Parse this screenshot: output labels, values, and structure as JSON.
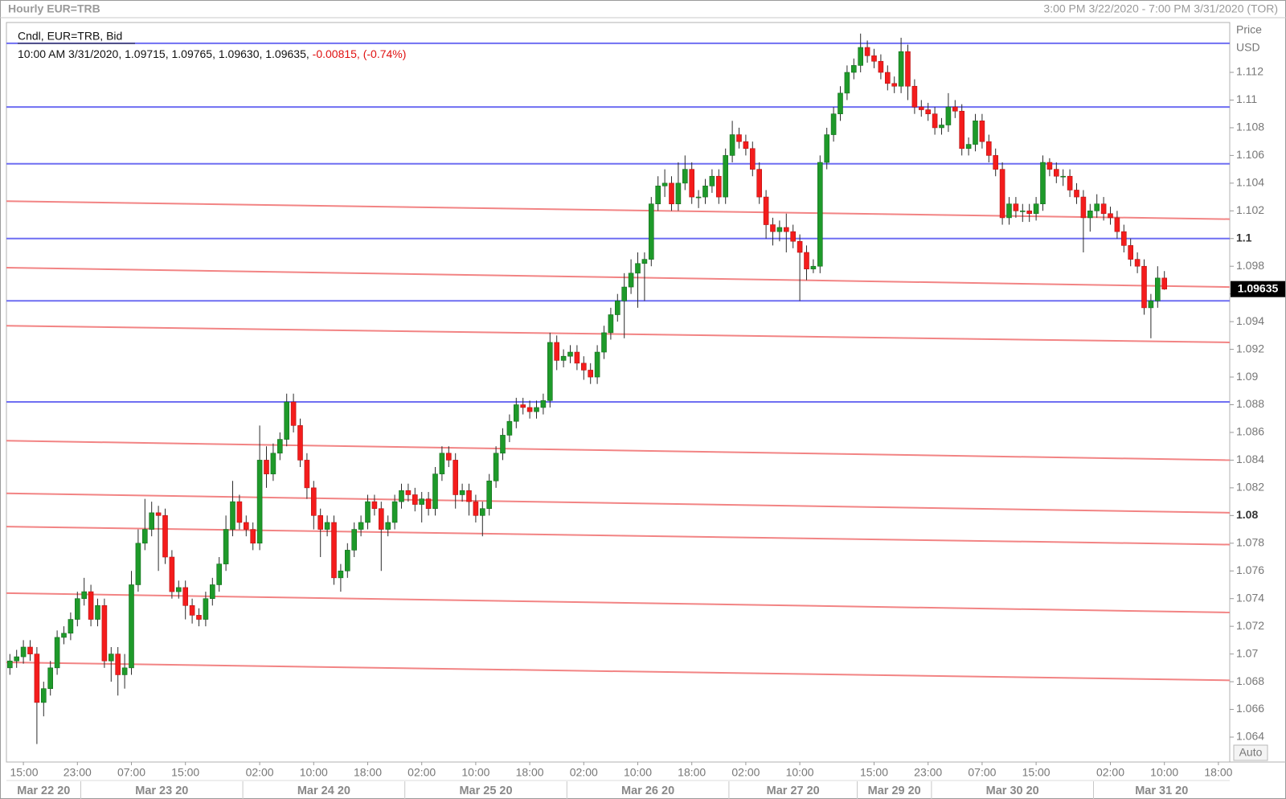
{
  "chart_data": {
    "type": "candlestick",
    "title": "Hourly EUR=TRB",
    "subtitle": "3:00 PM 3/22/2020 - 7:00 PM 3/31/2020 (TOR)",
    "legend_title": "Cndl, EUR=TRB, Bid",
    "legend_info": "10:00 AM 3/31/2020, 1.09715, 1.09765, 1.09630, 1.09635,",
    "legend_change": "-0.00815, (-0.74%)",
    "y_axis_label": "Price",
    "y_axis_unit": "USD",
    "scale_mode": "Auto",
    "up_color": "#1e9a2a",
    "down_color": "#f41c1c",
    "ylim": [
      1.0622,
      1.1156
    ],
    "yticks": [
      1.064,
      1.066,
      1.068,
      1.07,
      1.072,
      1.074,
      1.076,
      1.078,
      1.08,
      1.082,
      1.084,
      1.086,
      1.088,
      1.09,
      1.092,
      1.094,
      1.096,
      1.098,
      1.1,
      1.102,
      1.104,
      1.106,
      1.108,
      1.11,
      1.112
    ],
    "last_price": 1.09635,
    "horizontal_levels": {
      "color": "#6e6ef2",
      "values": [
        1.1141,
        1.1095,
        1.1054,
        1.1,
        1.0955,
        1.0882
      ]
    },
    "trend_lines": {
      "color": "#f28484",
      "start": [
        1.1027,
        1.0979,
        1.0937,
        1.0854,
        1.0816,
        1.0792,
        1.0744,
        1.0694
      ],
      "end": [
        1.1014,
        1.0965,
        1.0925,
        1.084,
        1.0802,
        1.0779,
        1.073,
        1.0681
      ]
    },
    "categories": [
      null,
      null,
      "15:00",
      null,
      null,
      null,
      null,
      null,
      null,
      null,
      "23:00",
      null,
      null,
      null,
      null,
      null,
      null,
      null,
      "07:00",
      null,
      null,
      null,
      null,
      null,
      null,
      null,
      "15:00",
      null,
      null,
      null,
      null,
      null,
      null,
      null,
      null,
      null,
      null,
      "02:00",
      null,
      null,
      null,
      null,
      null,
      null,
      null,
      "10:00",
      null,
      null,
      null,
      null,
      null,
      null,
      null,
      "18:00",
      null,
      null,
      null,
      null,
      null,
      null,
      null,
      "02:00",
      null,
      null,
      null,
      null,
      null,
      null,
      null,
      "10:00",
      null,
      null,
      null,
      null,
      null,
      null,
      null,
      "18:00",
      null,
      null,
      null,
      null,
      null,
      null,
      null,
      "02:00",
      null,
      null,
      null,
      null,
      null,
      null,
      null,
      "10:00",
      null,
      null,
      null,
      null,
      null,
      null,
      null,
      "18:00",
      null,
      null,
      null,
      null,
      null,
      null,
      null,
      "02:00",
      null,
      null,
      null,
      null,
      null,
      null,
      null,
      "10:00",
      null,
      null,
      null,
      null,
      null,
      null,
      null,
      null,
      null,
      null,
      "15:00",
      null,
      null,
      null,
      null,
      null,
      null,
      null,
      "23:00",
      null,
      null,
      null,
      null,
      null,
      null,
      null,
      "07:00",
      null,
      null,
      null,
      null,
      null,
      null,
      null,
      "15:00",
      null,
      null,
      null,
      null,
      null,
      null,
      null,
      null,
      null,
      null,
      "02:00",
      null,
      null,
      null,
      null,
      null,
      null,
      null,
      "10:00",
      null,
      null,
      null,
      null,
      null,
      null,
      null,
      "18:00",
      null
    ],
    "date_categories": [
      "Mar 22 20",
      null,
      null,
      null,
      null,
      null,
      null,
      null,
      null,
      null,
      null,
      "Mar 23 20",
      null,
      null,
      null,
      null,
      null,
      null,
      null,
      null,
      null,
      null,
      null,
      null,
      null,
      null,
      null,
      null,
      null,
      null,
      null,
      null,
      null,
      null,
      null,
      "Mar 24 20",
      null,
      null,
      null,
      null,
      null,
      null,
      null,
      null,
      null,
      null,
      null,
      null,
      null,
      null,
      null,
      null,
      null,
      null,
      null,
      null,
      null,
      null,
      null,
      "Mar 25 20",
      null,
      null,
      null,
      null,
      null,
      null,
      null,
      null,
      null,
      null,
      null,
      null,
      null,
      null,
      null,
      null,
      null,
      null,
      null,
      null,
      null,
      null,
      null,
      "Mar 26 20",
      null,
      null,
      null,
      null,
      null,
      null,
      null,
      null,
      null,
      null,
      null,
      null,
      null,
      null,
      null,
      null,
      null,
      null,
      null,
      null,
      null,
      null,
      null,
      "Mar 27 20",
      null,
      null,
      null,
      null,
      null,
      null,
      null,
      null,
      null,
      null,
      null,
      null,
      null,
      null,
      null,
      null,
      null,
      null,
      "Mar 29 20",
      null,
      null,
      null,
      null,
      null,
      null,
      null,
      null,
      null,
      null,
      "Mar 30 20",
      null,
      null,
      null,
      null,
      null,
      null,
      null,
      null,
      null,
      null,
      null,
      null,
      null,
      null,
      null,
      null,
      null,
      null,
      null,
      null,
      null,
      null,
      null,
      "Mar 31 20",
      null,
      null,
      null,
      null,
      null,
      null,
      null,
      null,
      null,
      null,
      null,
      null,
      null,
      null,
      null,
      null,
      null,
      null,
      null
    ],
    "open": [
      1.069,
      1.0695,
      1.0698,
      1.0705,
      1.07,
      1.0665,
      1.0675,
      1.069,
      1.0712,
      1.0715,
      1.0725,
      1.074,
      1.0745,
      1.0725,
      1.0735,
      1.0695,
      1.07,
      1.0685,
      1.069,
      1.075,
      1.078,
      1.079,
      1.0802,
      1.08,
      1.077,
      1.0745,
      1.0748,
      1.0735,
      1.0728,
      1.0725,
      1.074,
      1.075,
      1.0765,
      1.079,
      1.081,
      1.0795,
      1.079,
      1.078,
      1.084,
      1.083,
      1.0845,
      1.0855,
      1.0882,
      1.0865,
      1.084,
      1.082,
      1.08,
      1.079,
      1.0795,
      1.0755,
      1.076,
      1.0775,
      1.079,
      1.0795,
      1.081,
      1.0805,
      1.079,
      1.0795,
      1.081,
      1.0818,
      1.0815,
      1.0808,
      1.0812,
      1.0805,
      1.083,
      1.0845,
      1.084,
      1.0815,
      1.0818,
      1.081,
      1.08,
      1.0805,
      1.0825,
      1.0845,
      1.0858,
      1.0868,
      1.088,
      1.0878,
      1.0875,
      1.0878,
      1.0883,
      1.0925,
      1.0912,
      1.0915,
      1.0918,
      1.091,
      1.0905,
      1.09,
      1.0918,
      1.0932,
      1.0945,
      1.0955,
      1.0965,
      1.0975,
      1.0982,
      1.0985,
      1.1025,
      1.1038,
      1.104,
      1.1025,
      1.104,
      1.105,
      1.103,
      1.103,
      1.1038,
      1.1045,
      1.103,
      1.106,
      1.1075,
      1.107,
      1.1065,
      1.105,
      1.103,
      1.101,
      1.1005,
      1.1008,
      1.1005,
      1.0998,
      1.099,
      1.0978,
      1.098,
      1.1055,
      1.1075,
      1.109,
      1.1105,
      1.112,
      1.1125,
      1.1138,
      1.1132,
      1.1128,
      1.112,
      1.1112,
      1.111,
      1.1135,
      1.111,
      1.1095,
      1.1093,
      1.109,
      1.108,
      1.1082,
      1.1095,
      1.1092,
      1.1065,
      1.1068,
      1.1085,
      1.107,
      1.106,
      1.105,
      1.1015,
      1.1025,
      1.102,
      1.102,
      1.1018,
      1.1025,
      1.1055,
      1.105,
      1.1045,
      1.1045,
      1.1035,
      1.103,
      1.1015,
      1.102,
      1.1025,
      1.1018,
      1.1015,
      1.1005,
      1.0995,
      1.0985,
      1.098,
      1.095,
      1.0955,
      1.09715,
      null,
      null,
      null,
      null,
      null,
      null,
      null,
      null,
      null
    ],
    "high": [
      1.07,
      1.0703,
      1.071,
      1.071,
      1.0705,
      1.068,
      1.0695,
      1.0717,
      1.072,
      1.073,
      1.0745,
      1.0755,
      1.075,
      1.074,
      1.074,
      1.0705,
      1.0705,
      1.07,
      1.076,
      1.079,
      1.0812,
      1.081,
      1.0807,
      1.0805,
      1.0775,
      1.0753,
      1.0753,
      1.074,
      1.0733,
      1.0745,
      1.0755,
      1.077,
      1.08,
      1.0825,
      1.0815,
      1.08,
      1.0795,
      1.0865,
      1.085,
      1.0852,
      1.086,
      1.0888,
      1.0888,
      1.087,
      1.0845,
      1.0825,
      1.0805,
      1.08,
      1.08,
      1.0765,
      1.078,
      1.0795,
      1.08,
      1.0815,
      1.0815,
      1.081,
      1.08,
      1.0815,
      1.0823,
      1.0823,
      1.082,
      1.0817,
      1.0817,
      1.0835,
      1.085,
      1.085,
      1.0845,
      1.0823,
      1.0823,
      1.0815,
      1.081,
      1.083,
      1.085,
      1.0863,
      1.0873,
      1.0885,
      1.0885,
      1.0883,
      1.0883,
      1.0888,
      1.0932,
      1.093,
      1.092,
      1.0923,
      1.0923,
      1.0915,
      1.091,
      1.0923,
      1.0937,
      1.095,
      1.096,
      1.0975,
      1.0985,
      1.099,
      1.099,
      1.103,
      1.1045,
      1.105,
      1.1045,
      1.1055,
      1.106,
      1.1055,
      1.1035,
      1.1043,
      1.105,
      1.105,
      1.1065,
      1.1085,
      1.108,
      1.1075,
      1.107,
      1.1055,
      1.1035,
      1.1015,
      1.1013,
      1.1018,
      1.101,
      1.1003,
      1.0995,
      1.0985,
      1.106,
      1.108,
      1.1095,
      1.111,
      1.1125,
      1.113,
      1.1148,
      1.1143,
      1.1137,
      1.1133,
      1.1125,
      1.1117,
      1.1145,
      1.114,
      1.1115,
      1.11,
      1.1098,
      1.1095,
      1.1087,
      1.1105,
      1.11,
      1.1097,
      1.1073,
      1.109,
      1.109,
      1.1075,
      1.1065,
      1.1055,
      1.103,
      1.103,
      1.1025,
      1.1025,
      1.103,
      1.106,
      1.1058,
      1.1055,
      1.105,
      1.105,
      1.104,
      1.1035,
      1.1025,
      1.1032,
      1.103,
      1.1023,
      1.102,
      1.101,
      1.1,
      1.099,
      1.0985,
      1.096,
      1.098,
      1.09765,
      null,
      null,
      null,
      null,
      null,
      null,
      null,
      null,
      null
    ],
    "low": [
      1.0685,
      1.069,
      1.0693,
      1.0695,
      1.0635,
      1.0655,
      1.067,
      1.0685,
      1.0707,
      1.071,
      1.072,
      1.0735,
      1.072,
      1.072,
      1.069,
      1.068,
      1.067,
      1.0675,
      1.0685,
      1.0745,
      1.0775,
      1.0785,
      1.076,
      1.0765,
      1.074,
      1.074,
      1.0725,
      1.0722,
      1.072,
      1.072,
      1.0735,
      1.0745,
      1.076,
      1.0785,
      1.079,
      1.0785,
      1.0775,
      1.0775,
      1.082,
      1.0825,
      1.084,
      1.085,
      1.086,
      1.0835,
      1.0812,
      1.079,
      1.077,
      1.0785,
      1.075,
      1.0745,
      1.0755,
      1.077,
      1.0785,
      1.079,
      1.08,
      1.076,
      1.0785,
      1.079,
      1.0805,
      1.081,
      1.0803,
      1.0795,
      1.08,
      1.08,
      1.0825,
      1.0835,
      1.0805,
      1.081,
      1.08,
      1.0795,
      1.0785,
      1.08,
      1.082,
      1.084,
      1.0853,
      1.0863,
      1.0873,
      1.087,
      1.087,
      1.0873,
      1.0878,
      1.0905,
      1.0907,
      1.091,
      1.0905,
      1.0898,
      1.0895,
      1.0895,
      1.0913,
      1.0927,
      1.094,
      1.0928,
      1.096,
      1.095,
      1.0955,
      1.098,
      1.102,
      1.103,
      1.102,
      1.102,
      1.1035,
      1.1025,
      1.1022,
      1.1025,
      1.1033,
      1.1025,
      1.1025,
      1.1055,
      1.1065,
      1.106,
      1.1045,
      1.1025,
      1.1,
      1.0995,
      1.0998,
      1.099,
      1.0993,
      1.0955,
      1.097,
      1.0975,
      1.0975,
      1.105,
      1.107,
      1.1085,
      1.11,
      1.1115,
      1.112,
      1.1127,
      1.1123,
      1.1115,
      1.1107,
      1.1105,
      1.1105,
      1.11,
      1.109,
      1.1088,
      1.1085,
      1.1075,
      1.1075,
      1.1077,
      1.1087,
      1.106,
      1.106,
      1.1063,
      1.1065,
      1.1055,
      1.1045,
      1.101,
      1.101,
      1.1015,
      1.1012,
      1.1012,
      1.1013,
      1.102,
      1.1045,
      1.104,
      1.1038,
      1.103,
      1.1025,
      1.099,
      1.1005,
      1.1015,
      1.1013,
      1.101,
      1.1,
      1.099,
      1.098,
      1.0975,
      1.0945,
      1.0928,
      1.095,
      1.0963,
      null,
      null,
      null,
      null,
      null,
      null,
      null,
      null,
      null
    ],
    "close": [
      1.0695,
      1.0698,
      1.0705,
      1.07,
      1.0665,
      1.0675,
      1.069,
      1.0712,
      1.0715,
      1.0725,
      1.074,
      1.0745,
      1.0725,
      1.0735,
      1.0695,
      1.07,
      1.0685,
      1.069,
      1.075,
      1.078,
      1.079,
      1.0802,
      1.08,
      1.077,
      1.0745,
      1.0748,
      1.0735,
      1.0728,
      1.0725,
      1.074,
      1.075,
      1.0765,
      1.079,
      1.081,
      1.0795,
      1.079,
      1.078,
      1.084,
      1.083,
      1.0845,
      1.0855,
      1.0882,
      1.0865,
      1.084,
      1.082,
      1.08,
      1.079,
      1.0795,
      1.0755,
      1.076,
      1.0775,
      1.079,
      1.0795,
      1.081,
      1.0805,
      1.079,
      1.0795,
      1.081,
      1.0818,
      1.0815,
      1.0808,
      1.0812,
      1.0805,
      1.083,
      1.0845,
      1.084,
      1.0815,
      1.0818,
      1.081,
      1.08,
      1.0805,
      1.0825,
      1.0845,
      1.0858,
      1.0868,
      1.088,
      1.0878,
      1.0875,
      1.0878,
      1.0883,
      1.0925,
      1.0912,
      1.0915,
      1.0918,
      1.091,
      1.0905,
      1.09,
      1.0918,
      1.0932,
      1.0945,
      1.0955,
      1.0965,
      1.0975,
      1.0982,
      1.0985,
      1.1025,
      1.1038,
      1.104,
      1.1025,
      1.104,
      1.105,
      1.103,
      1.103,
      1.1038,
      1.1045,
      1.103,
      1.106,
      1.1075,
      1.107,
      1.1065,
      1.105,
      1.103,
      1.101,
      1.1005,
      1.1008,
      1.1005,
      1.0998,
      1.099,
      1.0978,
      1.098,
      1.1055,
      1.1075,
      1.109,
      1.1105,
      1.112,
      1.1125,
      1.1138,
      1.1132,
      1.1128,
      1.112,
      1.1112,
      1.111,
      1.1135,
      1.111,
      1.1095,
      1.1093,
      1.109,
      1.108,
      1.1082,
      1.1095,
      1.1092,
      1.1065,
      1.1068,
      1.1085,
      1.107,
      1.106,
      1.105,
      1.1015,
      1.1025,
      1.102,
      1.102,
      1.1018,
      1.1025,
      1.1055,
      1.105,
      1.1045,
      1.1045,
      1.1035,
      1.103,
      1.1015,
      1.102,
      1.1025,
      1.1018,
      1.1015,
      1.1005,
      1.0995,
      1.0985,
      1.098,
      1.095,
      1.0955,
      1.09715,
      1.09635,
      null,
      null,
      null,
      null,
      null,
      null,
      null,
      null,
      null
    ]
  }
}
